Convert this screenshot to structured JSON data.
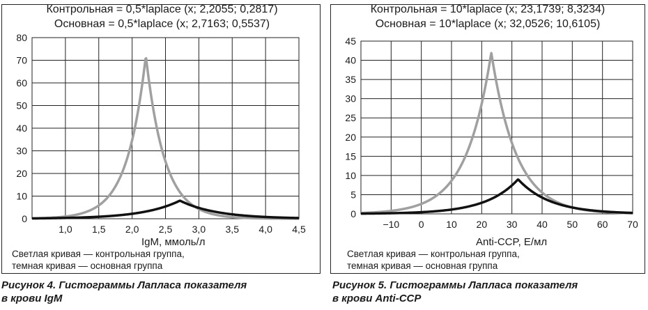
{
  "charts": [
    {
      "title_line1": "Контрольная = 0,5*laplace (x; 2,2055; 0,2817)",
      "title_line2": "Основная = 0,5*laplace (x; 2,7163; 0,5537)",
      "xlabel": "IgM, ммоль/л",
      "note_line1": "Светлая кривая — контрольная группа,",
      "note_line2": "темная кривая — основная группа",
      "caption_line1": "Рисунок 4. Гистограммы Лапласа показателя",
      "caption_line2": "в крови IgM"
    },
    {
      "title_line1": "Контрольная = 10*laplace (x; 23,1739; 8,3234)",
      "title_line2": "Основная = 10*laplace (x; 32,0526; 10,6105)",
      "xlabel": "Anti-CCP, Е/мл",
      "note_line1": "Светлая кривая — контрольная группа,",
      "note_line2": "темная кривая — основная группа",
      "caption_line1": "Рисунок 5. Гистограммы Лапласа показателя",
      "caption_line2": "в крови Anti-CCP"
    }
  ],
  "chart_data": [
    {
      "type": "line",
      "xlim": [
        0.5,
        4.5
      ],
      "ylim": [
        0,
        80
      ],
      "x_ticks": [
        1.0,
        1.5,
        2.0,
        2.5,
        3.0,
        3.5,
        4.0,
        4.5
      ],
      "x_tick_labels": [
        "1,0",
        "1,5",
        "2,0",
        "2,5",
        "3,0",
        "3,5",
        "4,0",
        "4,5"
      ],
      "y_ticks": [
        0,
        10,
        20,
        30,
        40,
        50,
        60,
        70,
        80
      ],
      "y_tick_labels": [
        "0",
        "10",
        "20",
        "30",
        "40",
        "50",
        "60",
        "70",
        "80"
      ],
      "grid": true,
      "series": [
        {
          "color": "#a0a0a0",
          "scale": 0.5,
          "mu": 2.2055,
          "b": 0.2817,
          "peak": 72
        },
        {
          "color": "#111111",
          "scale": 0.5,
          "mu": 2.7163,
          "b": 0.5537,
          "peak": 8
        }
      ]
    },
    {
      "type": "line",
      "xlim": [
        -20,
        70
      ],
      "ylim": [
        0,
        45
      ],
      "x_ticks": [
        -10,
        0,
        10,
        20,
        30,
        40,
        50,
        60,
        70
      ],
      "x_tick_labels": [
        "−10",
        "0",
        "10",
        "20",
        "30",
        "40",
        "50",
        "60",
        "70"
      ],
      "y_ticks": [
        0,
        5,
        10,
        15,
        20,
        25,
        30,
        35,
        40,
        45
      ],
      "y_tick_labels": [
        "0",
        "5",
        "10",
        "15",
        "20",
        "25",
        "30",
        "35",
        "40",
        "45"
      ],
      "grid": true,
      "series": [
        {
          "color": "#a0a0a0",
          "scale": 10,
          "mu": 23.1739,
          "b": 8.3234,
          "peak": 42
        },
        {
          "color": "#111111",
          "scale": 10,
          "mu": 32.0526,
          "b": 10.6105,
          "peak": 9
        }
      ]
    }
  ]
}
